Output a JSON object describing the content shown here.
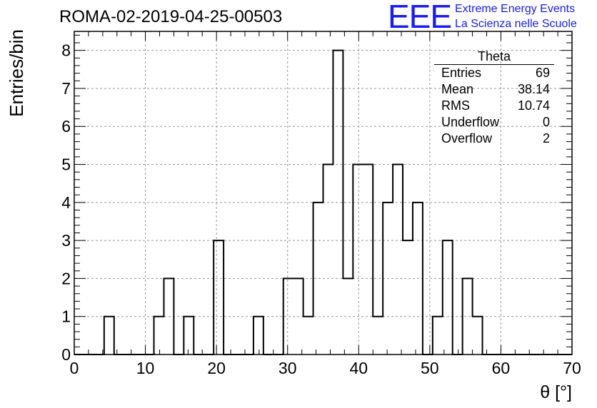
{
  "header": {
    "run_title": "ROMA-02-2019-04-25-00503",
    "logo_text": "EEE",
    "logo_line1": "Extreme Energy Events",
    "logo_line2": "La Scienza nelle Scuole"
  },
  "stats_box": {
    "title": "Theta",
    "rows": [
      {
        "label": "Entries",
        "value": "69"
      },
      {
        "label": "Mean",
        "value": "38.14"
      },
      {
        "label": "RMS",
        "value": "10.74"
      },
      {
        "label": "Underflow",
        "value": "0"
      },
      {
        "label": "Overflow",
        "value": "2"
      }
    ]
  },
  "colors": {
    "logo": "#1a1aff",
    "histogram": "#000000",
    "grid": "#999999"
  },
  "chart_data": {
    "type": "bar",
    "style": "step-histogram",
    "title": "ROMA-02-2019-04-25-00503",
    "xlabel": "θ [°]",
    "ylabel": "Entries/bin",
    "xlim": [
      0,
      70
    ],
    "ylim": [
      0,
      8.5
    ],
    "bin_width": 1.4,
    "grid": true,
    "x_ticks": [
      0,
      10,
      20,
      30,
      40,
      50,
      60,
      70
    ],
    "y_ticks": [
      0,
      1,
      2,
      3,
      4,
      5,
      6,
      7,
      8
    ],
    "bin_lower_edges": [
      0,
      1.4,
      2.8,
      4.2,
      5.6,
      7.0,
      8.4,
      9.8,
      11.2,
      12.6,
      14.0,
      15.4,
      16.8,
      18.2,
      19.6,
      21.0,
      22.4,
      23.8,
      25.2,
      26.6,
      28.0,
      29.4,
      30.8,
      32.2,
      33.6,
      35.0,
      36.4,
      37.8,
      39.2,
      40.6,
      42.0,
      43.4,
      44.8,
      46.2,
      47.6,
      49.0,
      50.4,
      51.8,
      53.2,
      54.6,
      56.0,
      57.4,
      58.8,
      60.2,
      61.6,
      63.0,
      64.4,
      65.8,
      67.2,
      68.6
    ],
    "values": [
      0,
      0,
      0,
      1,
      0,
      0,
      0,
      0,
      1,
      2,
      0,
      1,
      0,
      0,
      3,
      0,
      0,
      0,
      1,
      0,
      0,
      2,
      2,
      1,
      4,
      5,
      8,
      2,
      5,
      5,
      1,
      4,
      5,
      3,
      4,
      0,
      1,
      3,
      0,
      2,
      1,
      0,
      0,
      0,
      0,
      0,
      0,
      0,
      0,
      0
    ]
  }
}
